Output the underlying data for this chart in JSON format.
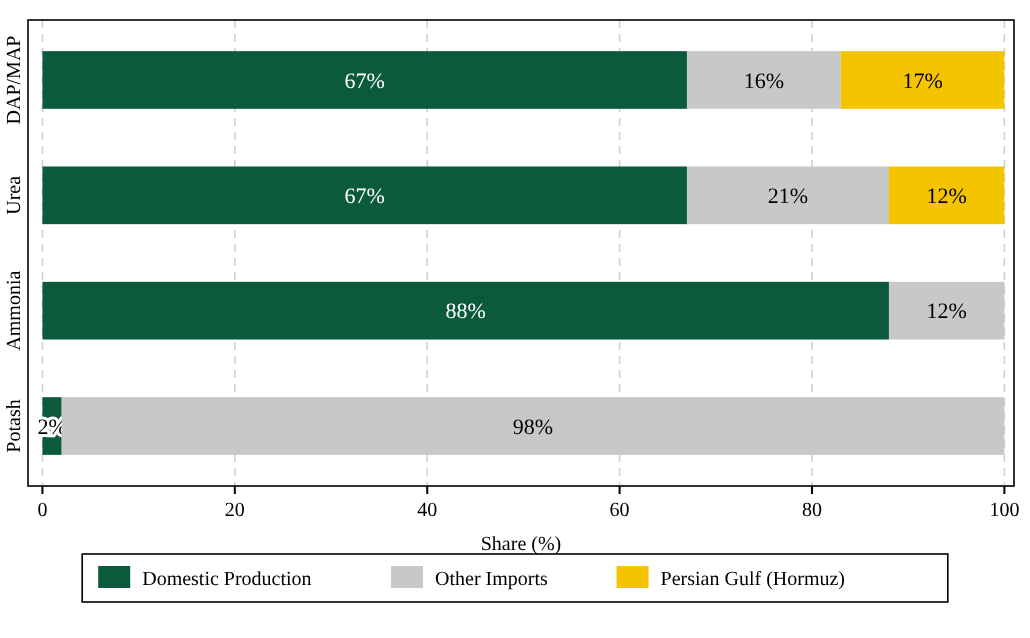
{
  "chart_data": {
    "type": "bar",
    "orientation": "horizontal",
    "stacked": true,
    "xlabel": "Share (%)",
    "categories": [
      "DAP/MAP",
      "Urea",
      "Ammonia",
      "Potash"
    ],
    "xlim": [
      -1.5,
      101
    ],
    "xticks": [
      0,
      20,
      40,
      60,
      80,
      100
    ],
    "grid": "x",
    "legend": "bottom",
    "series": [
      {
        "name": "Domestic Production",
        "color": "#0b5a3c",
        "values": [
          67,
          67,
          88,
          2
        ],
        "value_labels": [
          "67%",
          "67%",
          "88%",
          "2%"
        ]
      },
      {
        "name": "Other Imports",
        "color": "#c8c8c8",
        "values": [
          16,
          21,
          12,
          98
        ],
        "value_labels": [
          "16%",
          "21%",
          "12%",
          "98%"
        ]
      },
      {
        "name": "Persian Gulf (Hormuz)",
        "color": "#f5c400",
        "values": [
          17,
          12,
          null,
          null
        ],
        "value_labels": [
          "17%",
          "12%",
          null,
          null
        ]
      }
    ]
  }
}
